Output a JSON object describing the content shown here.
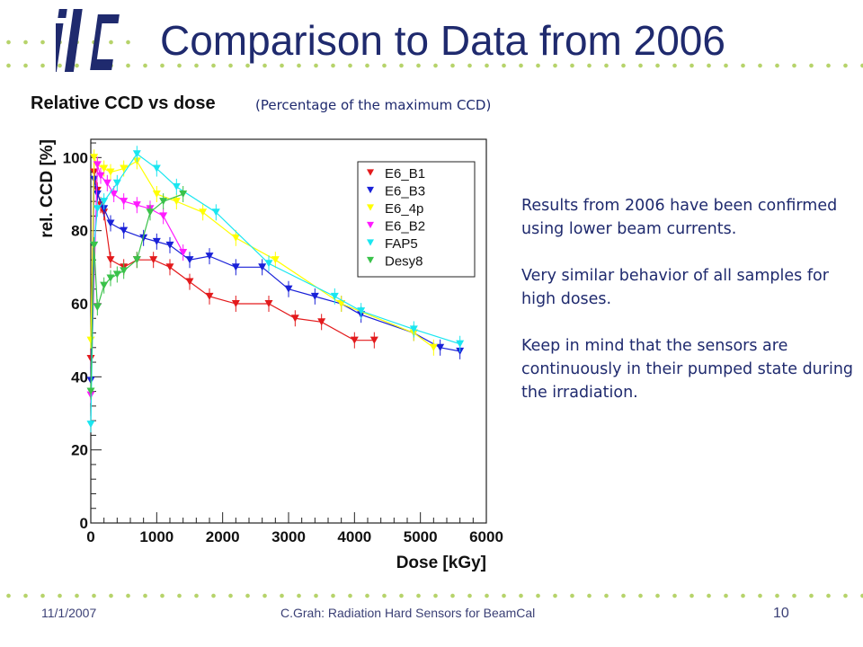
{
  "slide": {
    "title": "Comparison to Data from 2006",
    "subtitle": "Relative CCD vs dose",
    "subtitle_note": "(Percentage of the maximum CCD)",
    "notes": [
      "Results from 2006 have been confirmed using lower beam currents.",
      "Very similar behavior of all samples for high doses.",
      "Keep in mind that the sensors are continuously in their pumped state during the irradiation."
    ],
    "footer": {
      "date": "11/1/2007",
      "author": "C.Grah: Radiation Hard Sensors for BeamCal",
      "page": "10"
    },
    "colors": {
      "title": "#1f2a6e",
      "logo": "#1f2a6e",
      "dots": "#b6d36a"
    }
  },
  "chart_data": {
    "type": "scatter",
    "xlabel": "Dose [kGy]",
    "ylabel": "rel. CCD [%]",
    "xlim": [
      0,
      6000
    ],
    "ylim": [
      0,
      105
    ],
    "xticks": [
      0,
      1000,
      2000,
      3000,
      4000,
      5000,
      6000
    ],
    "yticks": [
      0,
      20,
      40,
      60,
      80,
      100
    ],
    "legend_position": "top-right",
    "series": [
      {
        "name": "E6_B1",
        "color": "#e31a1c",
        "marker": "triangle-down",
        "x": [
          0,
          50,
          100,
          150,
          200,
          300,
          500,
          700,
          950,
          1200,
          1500,
          1800,
          2200,
          2700,
          3100,
          3500,
          4000,
          4300
        ],
        "y": [
          45,
          96,
          91,
          87,
          85,
          72,
          70,
          72,
          72,
          70,
          66,
          62,
          60,
          60,
          56,
          55,
          50,
          50
        ]
      },
      {
        "name": "E6_B3",
        "color": "#1a21d8",
        "marker": "triangle-down",
        "x": [
          0,
          50,
          100,
          200,
          300,
          500,
          800,
          1000,
          1200,
          1500,
          1800,
          2200,
          2600,
          3000,
          3400,
          3800,
          4100,
          4900,
          5300,
          5600
        ],
        "y": [
          39,
          94,
          90,
          86,
          82,
          80,
          78,
          77,
          76,
          72,
          73,
          70,
          70,
          64,
          62,
          60,
          57,
          52,
          48,
          47
        ]
      },
      {
        "name": "E6_4p",
        "color": "#ffff00",
        "marker": "triangle-down",
        "x": [
          0,
          50,
          100,
          200,
          300,
          500,
          700,
          1000,
          1300,
          1700,
          2200,
          2800,
          3800,
          4900,
          5200
        ],
        "y": [
          50,
          100,
          98,
          97,
          96,
          97,
          99,
          90,
          88,
          85,
          78,
          72,
          60,
          52,
          48
        ]
      },
      {
        "name": "E6_B2",
        "color": "#ff1aff",
        "marker": "triangle-down",
        "x": [
          0,
          100,
          150,
          250,
          350,
          500,
          700,
          900,
          1100,
          1400
        ],
        "y": [
          35,
          98,
          95,
          93,
          90,
          88,
          87,
          86,
          84,
          74
        ]
      },
      {
        "name": "FAP5",
        "color": "#1ae6f0",
        "marker": "triangle-down",
        "x": [
          0,
          50,
          100,
          200,
          400,
          700,
          1000,
          1300,
          1900,
          2700,
          3700,
          4100,
          4900,
          5600
        ],
        "y": [
          27,
          76,
          86,
          88,
          93,
          101,
          97,
          92,
          85,
          71,
          62,
          58,
          53,
          49
        ]
      },
      {
        "name": "Desy8",
        "color": "#3ac24a",
        "marker": "triangle-down",
        "x": [
          0,
          50,
          100,
          200,
          300,
          400,
          500,
          700,
          900,
          1100,
          1400
        ],
        "y": [
          36,
          76,
          59,
          65,
          67,
          68,
          69,
          72,
          85,
          88,
          90
        ]
      }
    ]
  }
}
